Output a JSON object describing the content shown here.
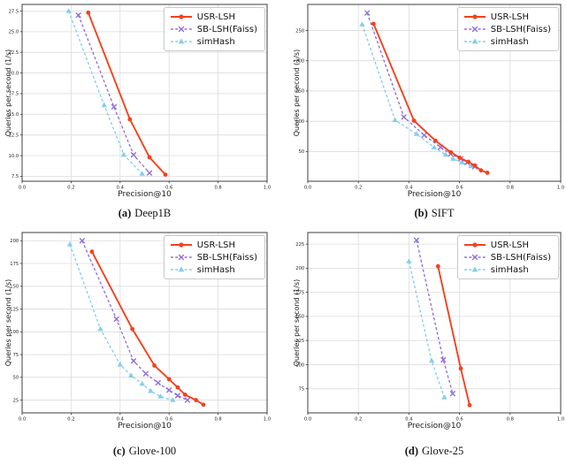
{
  "style": {
    "background": "#ffffff",
    "axis_color": "#3c3c3c",
    "grid_color": "#dcdcdc",
    "tick_label_color": "#262626",
    "legend_border_color": "#c9c9c9",
    "usr_lsh_color": "#f4411d",
    "sb_lsh_color": "#9370DB",
    "simhash_color": "#87CEEB"
  },
  "chart_data": [
    {
      "type": "line",
      "caption_label": "(a)",
      "caption_text": "Deep1B",
      "xlabel": "Precision@10",
      "ylabel": "Queries per second (1/s)",
      "xlim": [
        0,
        1
      ],
      "ylim": [
        6.9,
        28.3
      ],
      "xtick_values": [
        0,
        0.2,
        0.4,
        0.6,
        0.8,
        1.0
      ],
      "xtick_labels": [
        "0.0",
        "0.2",
        "0.4",
        "0.6",
        "0.8",
        "1.0"
      ],
      "ytick_values": [
        7.5,
        10.0,
        12.5,
        15.0,
        17.5,
        20.0,
        22.5,
        25.0,
        27.5
      ],
      "ytick_labels": [
        "7.5",
        "10.0",
        "12.5",
        "15.0",
        "17.5",
        "20.0",
        "22.5",
        "25.0",
        "27.5"
      ],
      "grid": true,
      "legend_position": "upper right",
      "series": [
        {
          "name": "USR-LSH",
          "color": "#f4411d",
          "line": "solid",
          "marker": "circle",
          "points": [
            [
              0.27,
              27.3
            ],
            [
              0.44,
              14.4
            ],
            [
              0.52,
              9.8
            ],
            [
              0.585,
              7.7
            ]
          ]
        },
        {
          "name": "SB-LSH(Faiss)",
          "color": "#9370DB",
          "line": "dashed",
          "marker": "x",
          "points": [
            [
              0.23,
              27.0
            ],
            [
              0.375,
              15.9
            ],
            [
              0.455,
              10.1
            ],
            [
              0.52,
              7.9
            ]
          ]
        },
        {
          "name": "simHash",
          "color": "#87CEEB",
          "line": "dashed",
          "marker": "triangle",
          "points": [
            [
              0.19,
              27.5
            ],
            [
              0.335,
              16.1
            ],
            [
              0.415,
              10.1
            ],
            [
              0.49,
              7.8
            ]
          ]
        }
      ]
    },
    {
      "type": "line",
      "caption_label": "(b)",
      "caption_text": "SIFT",
      "xlabel": "Precision@10",
      "ylabel": "Queries per second (1/s)",
      "xlim": [
        0,
        1
      ],
      "ylim": [
        1,
        293
      ],
      "xtick_values": [
        0,
        0.2,
        0.4,
        0.6,
        0.8,
        1.0
      ],
      "xtick_labels": [
        "0.0",
        "0.2",
        "0.4",
        "0.6",
        "0.8",
        "1.0"
      ],
      "ytick_values": [
        50,
        100,
        150,
        200,
        250
      ],
      "ytick_labels": [
        "50",
        "100",
        "150",
        "200",
        "250"
      ],
      "grid": true,
      "legend_position": "upper right",
      "series": [
        {
          "name": "USR-LSH",
          "color": "#f4411d",
          "line": "solid",
          "marker": "circle",
          "points": [
            [
              0.26,
              261
            ],
            [
              0.42,
              101
            ],
            [
              0.505,
              68
            ],
            [
              0.565,
              49
            ],
            [
              0.6,
              40
            ],
            [
              0.635,
              33
            ],
            [
              0.66,
              27
            ],
            [
              0.685,
              19
            ],
            [
              0.71,
              15
            ]
          ]
        },
        {
          "name": "SB-LSH(Faiss)",
          "color": "#9370DB",
          "line": "dashed",
          "marker": "x",
          "points": [
            [
              0.235,
              279
            ],
            [
              0.38,
              107
            ],
            [
              0.46,
              77
            ],
            [
              0.525,
              57
            ],
            [
              0.565,
              46
            ],
            [
              0.605,
              38
            ],
            [
              0.63,
              32
            ],
            [
              0.66,
              25
            ]
          ]
        },
        {
          "name": "simHash",
          "color": "#87CEEB",
          "line": "dashed",
          "marker": "triangle",
          "points": [
            [
              0.215,
              260
            ],
            [
              0.345,
              102
            ],
            [
              0.43,
              79
            ],
            [
              0.5,
              57
            ],
            [
              0.545,
              45
            ],
            [
              0.575,
              38
            ],
            [
              0.61,
              32
            ],
            [
              0.645,
              26
            ]
          ]
        }
      ]
    },
    {
      "type": "line",
      "caption_label": "(c)",
      "caption_text": "Glove-100",
      "xlabel": "Precision@10",
      "ylabel": "Queries per second (1/s)",
      "xlim": [
        0,
        1
      ],
      "ylim": [
        11,
        209
      ],
      "xtick_values": [
        0,
        0.2,
        0.4,
        0.6,
        0.8,
        1.0
      ],
      "xtick_labels": [
        "0.0",
        "0.2",
        "0.4",
        "0.6",
        "0.8",
        "1.0"
      ],
      "ytick_values": [
        25,
        50,
        75,
        100,
        125,
        150,
        175,
        200
      ],
      "ytick_labels": [
        "25",
        "50",
        "75",
        "100",
        "125",
        "150",
        "175",
        "200"
      ],
      "grid": true,
      "legend_position": "upper right",
      "series": [
        {
          "name": "USR-LSH",
          "color": "#f4411d",
          "line": "solid",
          "marker": "circle",
          "points": [
            [
              0.285,
              188
            ],
            [
              0.45,
              103
            ],
            [
              0.54,
              63
            ],
            [
              0.6,
              48
            ],
            [
              0.635,
              39
            ],
            [
              0.665,
              31
            ],
            [
              0.71,
              25
            ],
            [
              0.74,
              20
            ]
          ]
        },
        {
          "name": "SB-LSH(Faiss)",
          "color": "#9370DB",
          "line": "dashed",
          "marker": "x",
          "points": [
            [
              0.245,
              200
            ],
            [
              0.385,
              114
            ],
            [
              0.455,
              68
            ],
            [
              0.505,
              54
            ],
            [
              0.555,
              44
            ],
            [
              0.6,
              36
            ],
            [
              0.635,
              30
            ],
            [
              0.675,
              25
            ]
          ]
        },
        {
          "name": "simHash",
          "color": "#87CEEB",
          "line": "dashed",
          "marker": "triangle",
          "points": [
            [
              0.195,
              196
            ],
            [
              0.32,
              103
            ],
            [
              0.4,
              64
            ],
            [
              0.445,
              52
            ],
            [
              0.49,
              43
            ],
            [
              0.525,
              35
            ],
            [
              0.565,
              29
            ],
            [
              0.615,
              25
            ]
          ]
        }
      ]
    },
    {
      "type": "line",
      "caption_label": "(d)",
      "caption_text": "Glove-25",
      "xlabel": "Precision@10",
      "ylabel": "Queries per second (1/s)",
      "xlim": [
        0,
        1
      ],
      "ylim": [
        50,
        237
      ],
      "xtick_values": [
        0,
        0.2,
        0.4,
        0.6,
        0.8,
        1.0
      ],
      "xtick_labels": [
        "0.0",
        "0.2",
        "0.4",
        "0.6",
        "0.8",
        "1.0"
      ],
      "ytick_values": [
        75,
        100,
        125,
        150,
        175,
        200,
        225
      ],
      "ytick_labels": [
        "75",
        "100",
        "125",
        "150",
        "175",
        "200",
        "225"
      ],
      "grid": true,
      "legend_position": "upper right",
      "series": [
        {
          "name": "USR-LSH",
          "color": "#f4411d",
          "line": "solid",
          "marker": "circle",
          "points": [
            [
              0.515,
              202
            ],
            [
              0.605,
              96
            ],
            [
              0.64,
              58
            ]
          ]
        },
        {
          "name": "SB-LSH(Faiss)",
          "color": "#9370DB",
          "line": "dashed",
          "marker": "x",
          "points": [
            [
              0.43,
              229
            ],
            [
              0.536,
              105
            ],
            [
              0.573,
              70
            ]
          ]
        },
        {
          "name": "simHash",
          "color": "#87CEEB",
          "line": "dashed",
          "marker": "triangle",
          "points": [
            [
              0.4,
              207
            ],
            [
              0.49,
              104
            ],
            [
              0.54,
              66
            ]
          ]
        }
      ]
    }
  ]
}
